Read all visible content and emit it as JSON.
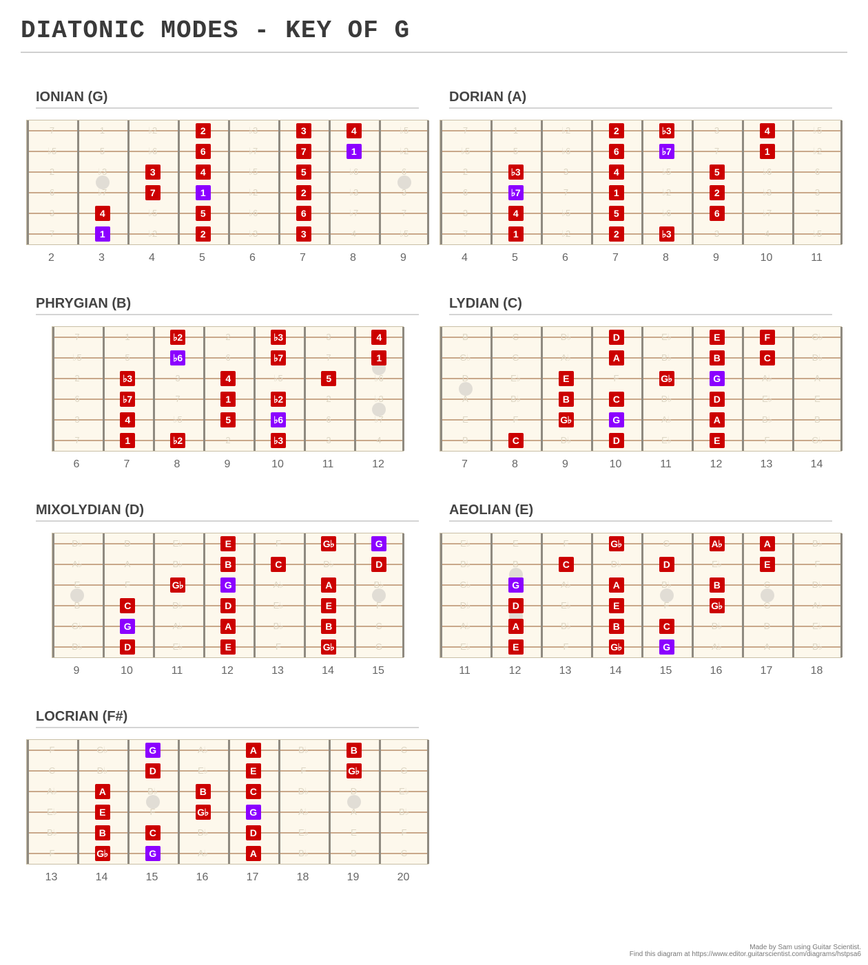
{
  "page": {
    "title": "DIATONIC MODES - KEY OF G",
    "credit_line1": "Made by Sam using Guitar Scientist.",
    "credit_line2": "Find this diagram at https://www.editor.guitarscientist.com/diagrams/hstpsa6"
  },
  "colors": {
    "note": "#cc0000",
    "root": "#8b00ff",
    "ghost": "#ddd6c4",
    "board": "#fdf8ec"
  },
  "diagrams": [
    {
      "title": "IONIAN (G)",
      "frets": [
        2,
        3,
        4,
        5,
        6,
        7,
        8,
        9
      ],
      "inlay_frets": [
        3,
        9
      ],
      "ghosts": [
        [
          "7",
          "1",
          "♭2",
          "2",
          "♭3",
          "3",
          "4",
          "♭5"
        ],
        [
          "♭5",
          "5",
          "♭6",
          "6",
          "♭7",
          "7",
          "1",
          "♭2"
        ],
        [
          "2",
          "♭3",
          "3",
          "4",
          "♭5",
          "5",
          "♭6",
          "6"
        ],
        [
          "6",
          "♭7",
          "7",
          "1",
          "♭2",
          "2",
          "♭3",
          "3"
        ],
        [
          "3",
          "4",
          "♭5",
          "5",
          "♭6",
          "6",
          "♭7",
          "7"
        ],
        [
          "7",
          "1",
          "♭2",
          "2",
          "♭3",
          "3",
          "4",
          "♭5"
        ]
      ],
      "notes": [
        {
          "s": 1,
          "f": 5,
          "t": "2"
        },
        {
          "s": 1,
          "f": 7,
          "t": "3"
        },
        {
          "s": 1,
          "f": 8,
          "t": "4"
        },
        {
          "s": 2,
          "f": 5,
          "t": "6"
        },
        {
          "s": 2,
          "f": 7,
          "t": "7"
        },
        {
          "s": 2,
          "f": 8,
          "t": "1",
          "root": true
        },
        {
          "s": 3,
          "f": 4,
          "t": "3"
        },
        {
          "s": 3,
          "f": 5,
          "t": "4"
        },
        {
          "s": 3,
          "f": 7,
          "t": "5"
        },
        {
          "s": 4,
          "f": 4,
          "t": "7"
        },
        {
          "s": 4,
          "f": 5,
          "t": "1",
          "root": true
        },
        {
          "s": 4,
          "f": 7,
          "t": "2"
        },
        {
          "s": 5,
          "f": 3,
          "t": "4"
        },
        {
          "s": 5,
          "f": 5,
          "t": "5"
        },
        {
          "s": 5,
          "f": 7,
          "t": "6"
        },
        {
          "s": 6,
          "f": 3,
          "t": "1",
          "root": true
        },
        {
          "s": 6,
          "f": 5,
          "t": "2"
        },
        {
          "s": 6,
          "f": 7,
          "t": "3"
        }
      ]
    },
    {
      "title": "DORIAN (A)",
      "frets": [
        4,
        5,
        6,
        7,
        8,
        9,
        10,
        11
      ],
      "inlay_frets": [],
      "ghosts": [
        [
          "7",
          "1",
          "♭2",
          "2",
          "♭3",
          "3",
          "4",
          "♭5"
        ],
        [
          "♭5",
          "5",
          "♭6",
          "6",
          "♭7",
          "7",
          "1",
          "♭2"
        ],
        [
          "2",
          "♭3",
          "3",
          "4",
          "♭5",
          "5",
          "♭6",
          "6"
        ],
        [
          "6",
          "♭7",
          "7",
          "1",
          "♭2",
          "2",
          "♭3",
          "3"
        ],
        [
          "3",
          "4",
          "♭5",
          "5",
          "♭6",
          "6",
          "♭7",
          "7"
        ],
        [
          "7",
          "1",
          "♭2",
          "2",
          "♭3",
          "3",
          "4",
          "♭5"
        ]
      ],
      "notes": [
        {
          "s": 1,
          "f": 7,
          "t": "2"
        },
        {
          "s": 1,
          "f": 8,
          "t": "♭3"
        },
        {
          "s": 1,
          "f": 10,
          "t": "4"
        },
        {
          "s": 2,
          "f": 7,
          "t": "6"
        },
        {
          "s": 2,
          "f": 8,
          "t": "♭7",
          "root": true
        },
        {
          "s": 2,
          "f": 10,
          "t": "1"
        },
        {
          "s": 3,
          "f": 5,
          "t": "♭3"
        },
        {
          "s": 3,
          "f": 7,
          "t": "4"
        },
        {
          "s": 3,
          "f": 9,
          "t": "5"
        },
        {
          "s": 4,
          "f": 5,
          "t": "♭7",
          "root": true
        },
        {
          "s": 4,
          "f": 7,
          "t": "1"
        },
        {
          "s": 4,
          "f": 9,
          "t": "2"
        },
        {
          "s": 5,
          "f": 5,
          "t": "4"
        },
        {
          "s": 5,
          "f": 7,
          "t": "5"
        },
        {
          "s": 5,
          "f": 9,
          "t": "6"
        },
        {
          "s": 6,
          "f": 5,
          "t": "1"
        },
        {
          "s": 6,
          "f": 7,
          "t": "2"
        },
        {
          "s": 6,
          "f": 8,
          "t": "♭3"
        }
      ]
    },
    {
      "title": "PHRYGIAN (B)",
      "frets": [
        6,
        7,
        8,
        9,
        10,
        11,
        12
      ],
      "inlay_frets": [
        12
      ],
      "ghosts": [
        [
          "7",
          "1",
          "♭2",
          "2",
          "♭3",
          "3",
          "4"
        ],
        [
          "♭5",
          "5",
          "♭6",
          "6",
          "♭7",
          "7",
          "1"
        ],
        [
          "2",
          "♭3",
          "3",
          "4",
          "♭5",
          "5",
          "♭6"
        ],
        [
          "6",
          "♭7",
          "7",
          "1",
          "♭2",
          "2",
          "♭3"
        ],
        [
          "3",
          "4",
          "♭5",
          "5",
          "♭6",
          "6",
          "♭7"
        ],
        [
          "7",
          "1",
          "♭2",
          "2",
          "♭3",
          "3",
          "4"
        ]
      ],
      "notes": [
        {
          "s": 1,
          "f": 8,
          "t": "♭2"
        },
        {
          "s": 1,
          "f": 10,
          "t": "♭3"
        },
        {
          "s": 1,
          "f": 12,
          "t": "4"
        },
        {
          "s": 2,
          "f": 8,
          "t": "♭6",
          "root": true
        },
        {
          "s": 2,
          "f": 10,
          "t": "♭7"
        },
        {
          "s": 2,
          "f": 12,
          "t": "1"
        },
        {
          "s": 3,
          "f": 7,
          "t": "♭3"
        },
        {
          "s": 3,
          "f": 9,
          "t": "4"
        },
        {
          "s": 3,
          "f": 11,
          "t": "5"
        },
        {
          "s": 4,
          "f": 7,
          "t": "♭7"
        },
        {
          "s": 4,
          "f": 9,
          "t": "1"
        },
        {
          "s": 4,
          "f": 10,
          "t": "♭2"
        },
        {
          "s": 5,
          "f": 7,
          "t": "4"
        },
        {
          "s": 5,
          "f": 9,
          "t": "5"
        },
        {
          "s": 5,
          "f": 10,
          "t": "♭6",
          "root": true
        },
        {
          "s": 6,
          "f": 7,
          "t": "1"
        },
        {
          "s": 6,
          "f": 8,
          "t": "♭2"
        },
        {
          "s": 6,
          "f": 10,
          "t": "♭3"
        }
      ]
    },
    {
      "title": "LYDIAN (C)",
      "frets": [
        7,
        8,
        9,
        10,
        11,
        12,
        13,
        14
      ],
      "inlay_frets": [
        7
      ],
      "ghosts": [
        [
          "B",
          "C",
          "D♭",
          "D",
          "E♭",
          "E",
          "F",
          "G♭"
        ],
        [
          "G♭",
          "G",
          "A♭",
          "A",
          "B♭",
          "B",
          "C",
          "D♭"
        ],
        [
          "D",
          "E♭",
          "E",
          "F",
          "G♭",
          "G",
          "A♭",
          "A"
        ],
        [
          "A",
          "B♭",
          "B",
          "C",
          "D♭",
          "D",
          "E♭",
          "E"
        ],
        [
          "E",
          "F",
          "G♭",
          "G",
          "A♭",
          "A",
          "B♭",
          "B"
        ],
        [
          "B",
          "C",
          "D♭",
          "D",
          "E♭",
          "E",
          "F",
          "G♭"
        ]
      ],
      "notes": [
        {
          "s": 1,
          "f": 10,
          "t": "D"
        },
        {
          "s": 1,
          "f": 12,
          "t": "E"
        },
        {
          "s": 1,
          "f": 13,
          "t": "F"
        },
        {
          "s": 2,
          "f": 10,
          "t": "A"
        },
        {
          "s": 2,
          "f": 12,
          "t": "B"
        },
        {
          "s": 2,
          "f": 13,
          "t": "C"
        },
        {
          "s": 3,
          "f": 9,
          "t": "E"
        },
        {
          "s": 3,
          "f": 11,
          "t": "G♭"
        },
        {
          "s": 3,
          "f": 12,
          "t": "G",
          "root": true
        },
        {
          "s": 4,
          "f": 9,
          "t": "B"
        },
        {
          "s": 4,
          "f": 10,
          "t": "C"
        },
        {
          "s": 4,
          "f": 12,
          "t": "D"
        },
        {
          "s": 5,
          "f": 9,
          "t": "G♭"
        },
        {
          "s": 5,
          "f": 10,
          "t": "G",
          "root": true
        },
        {
          "s": 5,
          "f": 12,
          "t": "A"
        },
        {
          "s": 6,
          "f": 8,
          "t": "C"
        },
        {
          "s": 6,
          "f": 10,
          "t": "D"
        },
        {
          "s": 6,
          "f": 12,
          "t": "E"
        }
      ]
    },
    {
      "title": "MIXOLYDIAN (D)",
      "frets": [
        9,
        10,
        11,
        12,
        13,
        14,
        15
      ],
      "inlay_frets": [
        9,
        15
      ],
      "ghosts": [
        [
          "D♭",
          "D",
          "E♭",
          "E",
          "F",
          "G♭",
          "G"
        ],
        [
          "A♭",
          "A",
          "B♭",
          "B",
          "C",
          "D♭",
          "D"
        ],
        [
          "E",
          "F",
          "G♭",
          "G",
          "A♭",
          "A",
          "B♭"
        ],
        [
          "B",
          "C",
          "D♭",
          "D",
          "E♭",
          "E",
          "F"
        ],
        [
          "G♭",
          "G",
          "A♭",
          "A",
          "B♭",
          "B",
          "C"
        ],
        [
          "D♭",
          "D",
          "E♭",
          "E",
          "F",
          "G♭",
          "G"
        ]
      ],
      "notes": [
        {
          "s": 1,
          "f": 12,
          "t": "E"
        },
        {
          "s": 1,
          "f": 14,
          "t": "G♭"
        },
        {
          "s": 1,
          "f": 15,
          "t": "G",
          "root": true
        },
        {
          "s": 2,
          "f": 12,
          "t": "B"
        },
        {
          "s": 2,
          "f": 13,
          "t": "C"
        },
        {
          "s": 2,
          "f": 15,
          "t": "D"
        },
        {
          "s": 3,
          "f": 11,
          "t": "G♭"
        },
        {
          "s": 3,
          "f": 12,
          "t": "G",
          "root": true
        },
        {
          "s": 3,
          "f": 14,
          "t": "A"
        },
        {
          "s": 4,
          "f": 10,
          "t": "C"
        },
        {
          "s": 4,
          "f": 12,
          "t": "D"
        },
        {
          "s": 4,
          "f": 14,
          "t": "E"
        },
        {
          "s": 5,
          "f": 10,
          "t": "G",
          "root": true
        },
        {
          "s": 5,
          "f": 12,
          "t": "A"
        },
        {
          "s": 5,
          "f": 14,
          "t": "B"
        },
        {
          "s": 6,
          "f": 10,
          "t": "D"
        },
        {
          "s": 6,
          "f": 12,
          "t": "E"
        },
        {
          "s": 6,
          "f": 14,
          "t": "G♭"
        }
      ]
    },
    {
      "title": "AEOLIAN (E)",
      "frets": [
        11,
        12,
        13,
        14,
        15,
        16,
        17,
        18
      ],
      "inlay_frets": [
        12,
        15,
        17
      ],
      "ghosts": [
        [
          "E♭",
          "E",
          "F",
          "G♭",
          "G",
          "A♭",
          "A",
          "B♭"
        ],
        [
          "B♭",
          "B",
          "C",
          "D♭",
          "D",
          "E♭",
          "E",
          "F"
        ],
        [
          "G♭",
          "G",
          "A♭",
          "A",
          "B♭",
          "B",
          "C",
          "D♭"
        ],
        [
          "D♭",
          "D",
          "E♭",
          "E",
          "F",
          "G♭",
          "G",
          "A♭"
        ],
        [
          "A♭",
          "A",
          "B♭",
          "B",
          "C",
          "D♭",
          "D",
          "E♭"
        ],
        [
          "E♭",
          "E",
          "F",
          "G♭",
          "G",
          "A♭",
          "A",
          "B♭"
        ]
      ],
      "notes": [
        {
          "s": 1,
          "f": 14,
          "t": "G♭"
        },
        {
          "s": 1,
          "f": 16,
          "t": "A♭"
        },
        {
          "s": 1,
          "f": 17,
          "t": "A"
        },
        {
          "s": 2,
          "f": 13,
          "t": "C"
        },
        {
          "s": 2,
          "f": 15,
          "t": "D"
        },
        {
          "s": 2,
          "f": 17,
          "t": "E"
        },
        {
          "s": 3,
          "f": 12,
          "t": "G",
          "root": true
        },
        {
          "s": 3,
          "f": 14,
          "t": "A"
        },
        {
          "s": 3,
          "f": 16,
          "t": "B"
        },
        {
          "s": 4,
          "f": 12,
          "t": "D"
        },
        {
          "s": 4,
          "f": 14,
          "t": "E"
        },
        {
          "s": 4,
          "f": 16,
          "t": "G♭"
        },
        {
          "s": 5,
          "f": 12,
          "t": "A"
        },
        {
          "s": 5,
          "f": 14,
          "t": "B"
        },
        {
          "s": 5,
          "f": 15,
          "t": "C"
        },
        {
          "s": 6,
          "f": 12,
          "t": "E"
        },
        {
          "s": 6,
          "f": 14,
          "t": "G♭"
        },
        {
          "s": 6,
          "f": 15,
          "t": "G",
          "root": true
        }
      ]
    },
    {
      "title": "LOCRIAN (F#)",
      "frets": [
        13,
        14,
        15,
        16,
        17,
        18,
        19,
        20
      ],
      "inlay_frets": [
        15,
        19
      ],
      "ghosts": [
        [
          "F",
          "G♭",
          "G",
          "A♭",
          "A",
          "B♭",
          "B",
          "C"
        ],
        [
          "C",
          "D♭",
          "D",
          "E♭",
          "E",
          "F",
          "G♭",
          "G"
        ],
        [
          "A♭",
          "A",
          "B♭",
          "B",
          "C",
          "D♭",
          "D",
          "E♭"
        ],
        [
          "E♭",
          "E",
          "F",
          "G♭",
          "G",
          "A♭",
          "A",
          "B♭"
        ],
        [
          "B♭",
          "B",
          "C",
          "D♭",
          "D",
          "E♭",
          "E",
          "F"
        ],
        [
          "F",
          "G♭",
          "G",
          "A♭",
          "A",
          "B♭",
          "B",
          "C"
        ]
      ],
      "notes": [
        {
          "s": 1,
          "f": 15,
          "t": "G",
          "root": true
        },
        {
          "s": 1,
          "f": 17,
          "t": "A"
        },
        {
          "s": 1,
          "f": 19,
          "t": "B"
        },
        {
          "s": 2,
          "f": 15,
          "t": "D"
        },
        {
          "s": 2,
          "f": 17,
          "t": "E"
        },
        {
          "s": 2,
          "f": 19,
          "t": "G♭"
        },
        {
          "s": 3,
          "f": 14,
          "t": "A"
        },
        {
          "s": 3,
          "f": 16,
          "t": "B"
        },
        {
          "s": 3,
          "f": 17,
          "t": "C"
        },
        {
          "s": 4,
          "f": 14,
          "t": "E"
        },
        {
          "s": 4,
          "f": 16,
          "t": "G♭"
        },
        {
          "s": 4,
          "f": 17,
          "t": "G",
          "root": true
        },
        {
          "s": 5,
          "f": 14,
          "t": "B"
        },
        {
          "s": 5,
          "f": 15,
          "t": "C"
        },
        {
          "s": 5,
          "f": 17,
          "t": "D"
        },
        {
          "s": 6,
          "f": 14,
          "t": "G♭"
        },
        {
          "s": 6,
          "f": 15,
          "t": "G",
          "root": true
        },
        {
          "s": 6,
          "f": 17,
          "t": "A"
        }
      ]
    }
  ]
}
